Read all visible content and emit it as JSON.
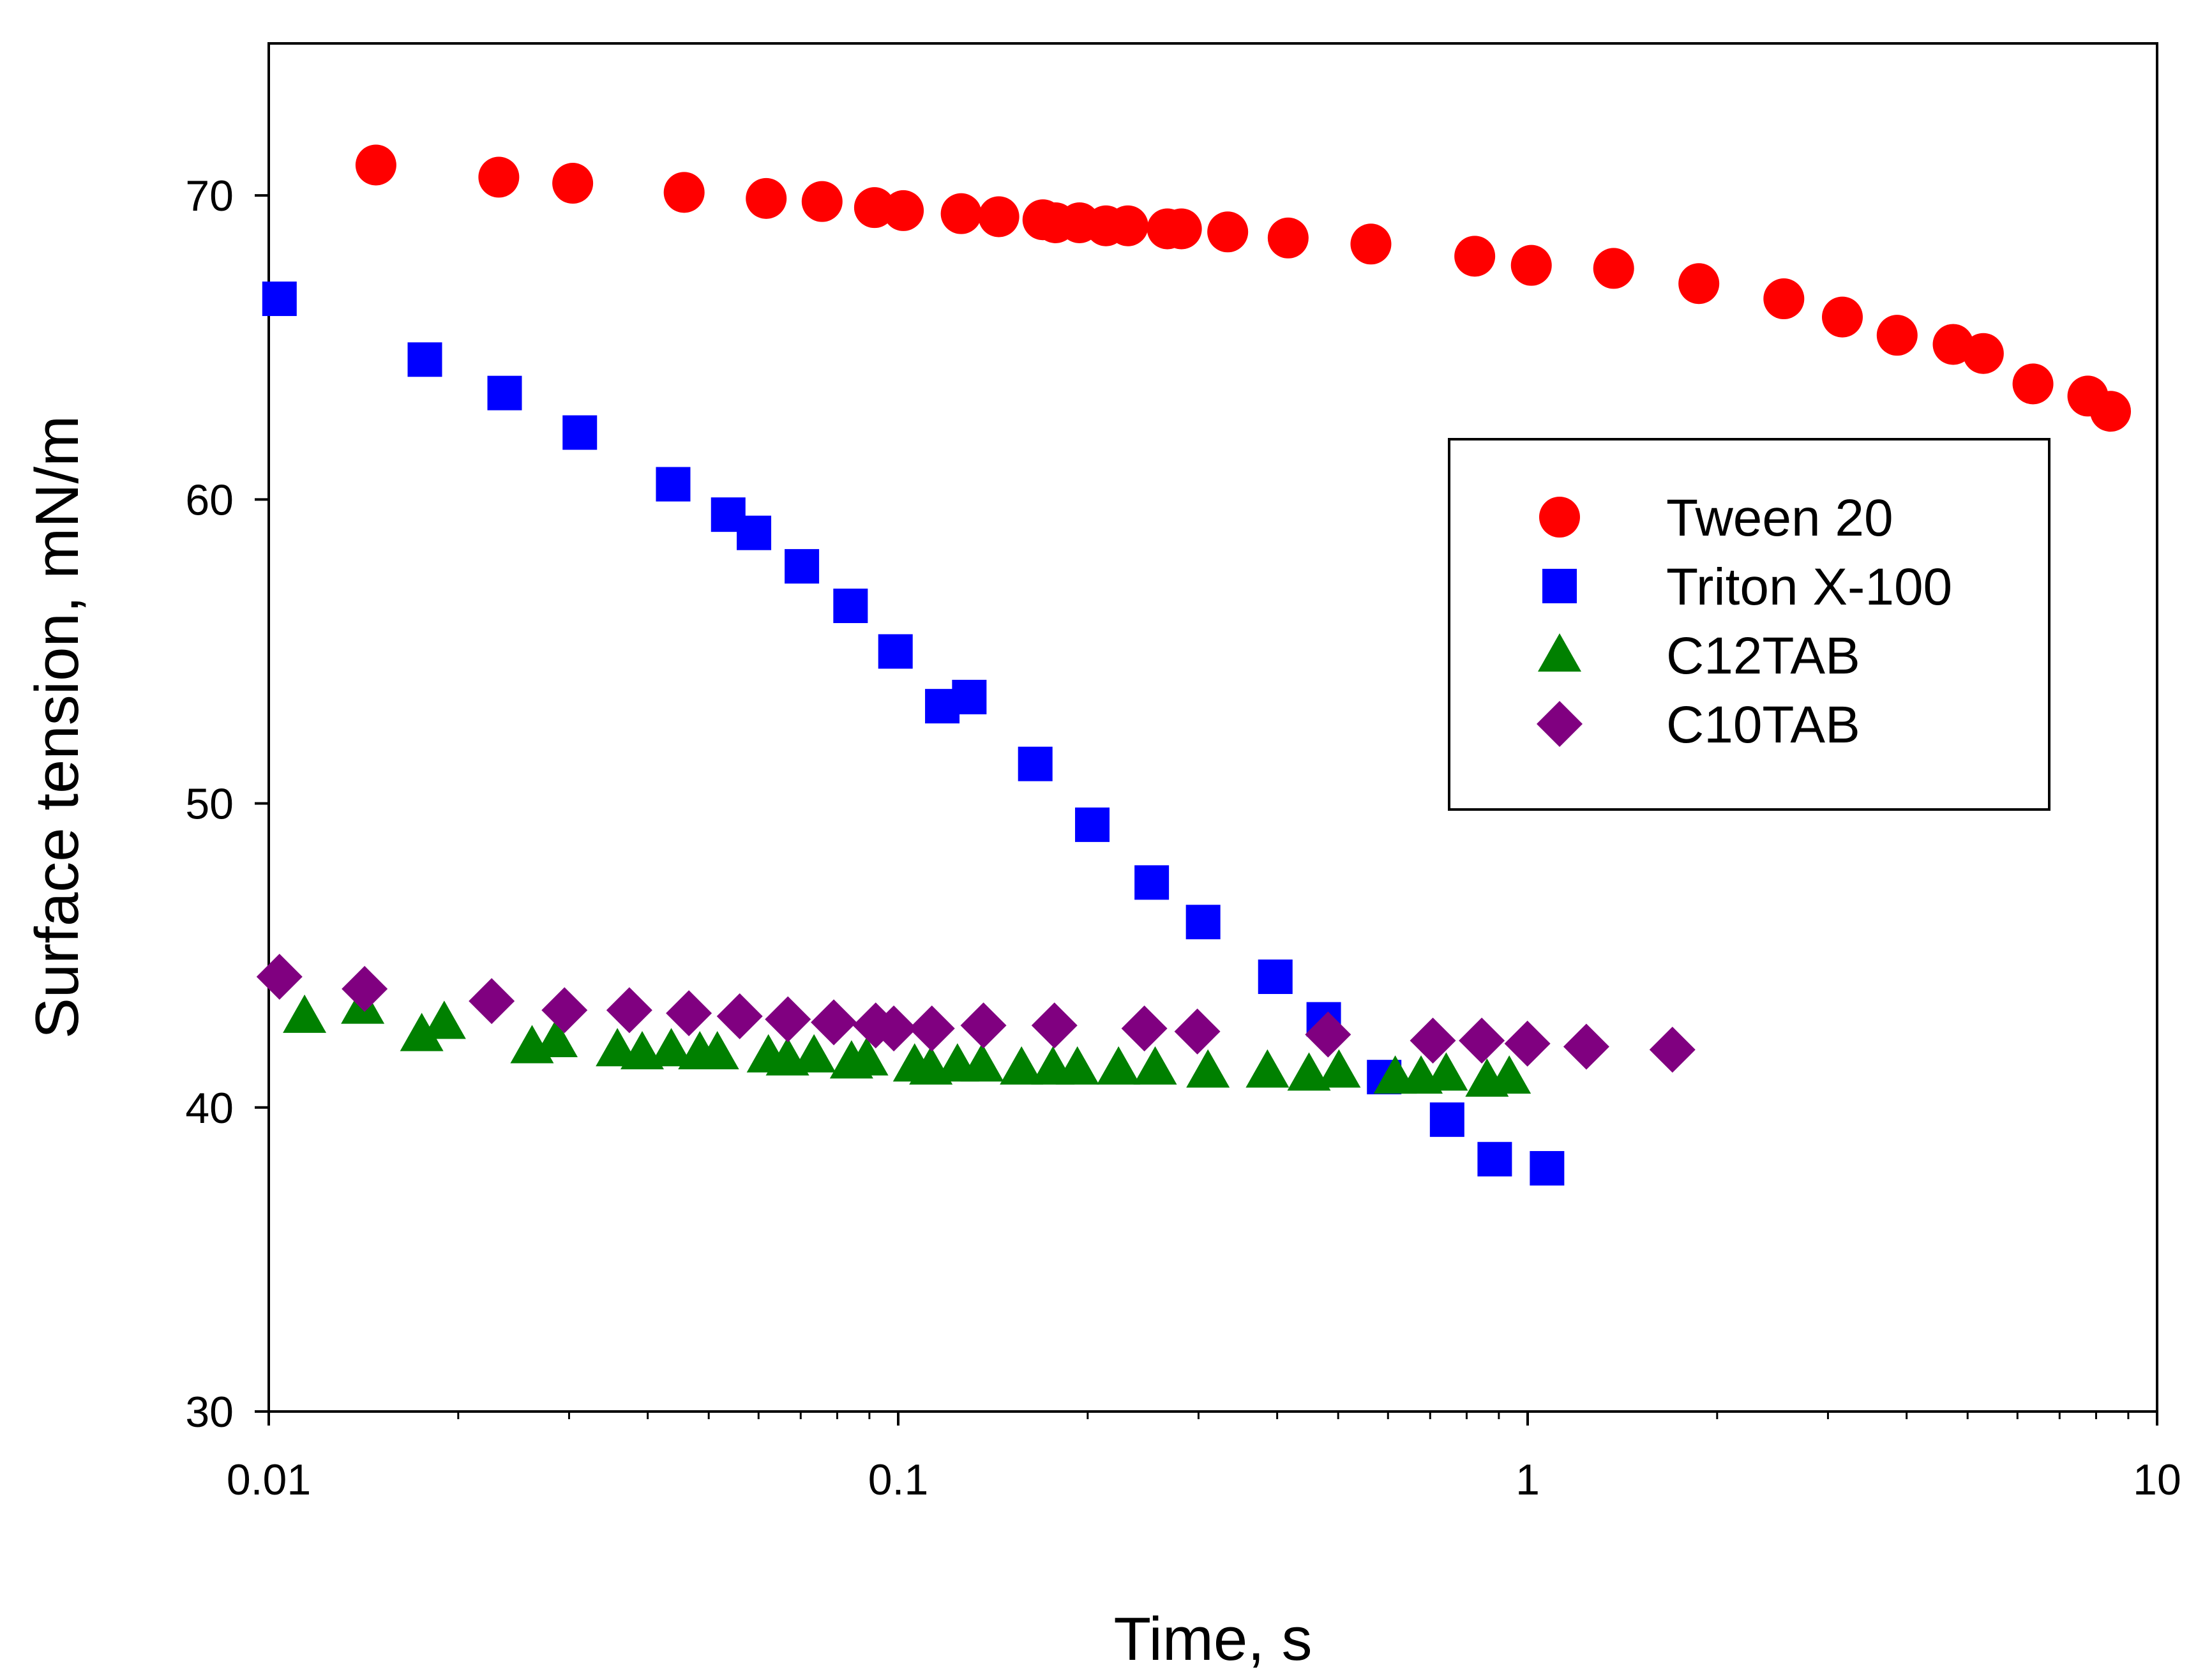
{
  "chart_data": {
    "type": "scatter",
    "title": "",
    "xlabel": "Time, s",
    "ylabel": "Surface tension, mN/m",
    "xscale": "log",
    "xlim": [
      0.01,
      10
    ],
    "ylim": [
      30,
      75
    ],
    "xticks": [
      0.01,
      0.1,
      1,
      10
    ],
    "xtick_labels": [
      "0.01",
      "0.1",
      "1",
      "10"
    ],
    "yticks": [
      30,
      40,
      50,
      60,
      70
    ],
    "ytick_labels": [
      "30",
      "40",
      "50",
      "60",
      "70"
    ],
    "grid": false,
    "legend_position": "right",
    "series": [
      {
        "name": "Tween 20",
        "marker": "circle",
        "color": "#ff0000",
        "x": [
          0.0148,
          0.0232,
          0.0304,
          0.0457,
          0.0617,
          0.0757,
          0.0917,
          0.1019,
          0.1259,
          0.1445,
          0.1698,
          0.1778,
          0.1941,
          0.2138,
          0.2317,
          0.2677,
          0.2818,
          0.3338,
          0.4164,
          0.5636,
          0.8241,
          1.0135,
          1.3697,
          1.8707,
          2.5528,
          3.1622,
          3.8637,
          4.7424,
          5.2963,
          6.3504,
          7.7624,
          8.4332
        ],
        "y": [
          71.0,
          70.6,
          70.4,
          70.1,
          69.9,
          69.8,
          69.6,
          69.5,
          69.4,
          69.3,
          69.2,
          69.1,
          69.1,
          69.0,
          69.0,
          68.9,
          68.9,
          68.8,
          68.6,
          68.4,
          68.0,
          67.7,
          67.6,
          67.1,
          66.6,
          66.0,
          65.4,
          65.1,
          64.8,
          63.8,
          63.4,
          62.9
        ]
      },
      {
        "name": "Triton X-100",
        "marker": "square",
        "color": "#0000ff",
        "x": [
          0.0104,
          0.0177,
          0.0237,
          0.0312,
          0.0439,
          0.0537,
          0.059,
          0.0703,
          0.084,
          0.099,
          0.1175,
          0.1297,
          0.1651,
          0.2034,
          0.2528,
          0.3051,
          0.3973,
          0.4743,
          0.5916,
          0.7448,
          0.8865,
          1.0735
        ],
        "y": [
          66.6,
          64.6,
          63.5,
          62.2,
          60.5,
          59.5,
          58.9,
          57.8,
          56.5,
          55.0,
          53.2,
          53.5,
          51.3,
          49.3,
          47.4,
          46.1,
          44.3,
          42.9,
          41.0,
          39.6,
          38.3,
          38.0
        ]
      },
      {
        "name": "C12TAB",
        "marker": "triangle",
        "color": "#008000",
        "x": [
          0.0114,
          0.0141,
          0.0175,
          0.019,
          0.0262,
          0.0286,
          0.0358,
          0.0392,
          0.0436,
          0.0484,
          0.0516,
          0.0622,
          0.0667,
          0.0735,
          0.0843,
          0.0891,
          0.1062,
          0.1127,
          0.1242,
          0.1359,
          0.157,
          0.1761,
          0.1926,
          0.2239,
          0.256,
          0.3105,
          0.386,
          0.4494,
          0.5014,
          0.6161,
          0.6771,
          0.7423,
          0.8618,
          0.9349
        ],
        "y": [
          43.0,
          43.3,
          42.4,
          42.8,
          42.0,
          42.2,
          41.9,
          41.8,
          41.9,
          41.8,
          41.8,
          41.7,
          41.6,
          41.7,
          41.5,
          41.6,
          41.4,
          41.3,
          41.4,
          41.4,
          41.3,
          41.3,
          41.3,
          41.3,
          41.3,
          41.2,
          41.2,
          41.1,
          41.2,
          41.0,
          41.0,
          41.1,
          40.9,
          41.0
        ]
      },
      {
        "name": "C10TAB",
        "marker": "diamond",
        "color": "#800080",
        "x": [
          0.0104,
          0.0142,
          0.0226,
          0.0295,
          0.0374,
          0.0465,
          0.056,
          0.0668,
          0.079,
          0.0921,
          0.0984,
          0.1131,
          0.1366,
          0.1771,
          0.2461,
          0.2987,
          0.4818,
          0.707,
          0.8454,
          0.9992,
          1.2395,
          1.6983
        ],
        "y": [
          44.3,
          43.9,
          43.5,
          43.2,
          43.2,
          43.1,
          43.0,
          42.9,
          42.8,
          42.7,
          42.6,
          42.6,
          42.7,
          42.7,
          42.6,
          42.5,
          42.4,
          42.2,
          42.2,
          42.1,
          42.0,
          41.9
        ]
      }
    ]
  }
}
